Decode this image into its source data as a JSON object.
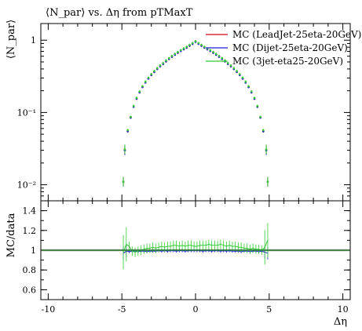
{
  "title": "⟨N_par⟩ vs. Δη from pTMaxT",
  "chart_data": [
    {
      "type": "line",
      "title": "⟨N_par⟩ vs. Δη from pTMaxT",
      "ylabel": "⟨N_par⟩",
      "xlabel": "",
      "xlim": [
        -10.5,
        10.5
      ],
      "ylim": [
        0.006,
        1.7
      ],
      "yscale": "log",
      "y_ticks": [
        0.01,
        0.1,
        1
      ],
      "y_tick_labels": [
        "10⁻²",
        "10⁻¹",
        "1"
      ],
      "legend": "top-right",
      "x": [
        -4.9,
        -4.8,
        -4.6,
        -4.4,
        -4.2,
        -4.0,
        -3.8,
        -3.6,
        -3.4,
        -3.2,
        -3.0,
        -2.8,
        -2.6,
        -2.4,
        -2.2,
        -2.0,
        -1.8,
        -1.6,
        -1.4,
        -1.2,
        -1.0,
        -0.8,
        -0.6,
        -0.4,
        -0.2,
        0.0,
        0.2,
        0.4,
        0.6,
        0.8,
        1.0,
        1.2,
        1.4,
        1.6,
        1.8,
        2.0,
        2.2,
        2.4,
        2.6,
        2.8,
        3.0,
        3.2,
        3.4,
        3.6,
        3.8,
        4.0,
        4.2,
        4.4,
        4.6,
        4.8,
        4.9
      ],
      "series": [
        {
          "name": "MC (LeadJet-25eta-20GeV)",
          "color": "#d0021b",
          "values": [
            0.011,
            0.03,
            0.055,
            0.085,
            0.12,
            0.155,
            0.19,
            0.225,
            0.26,
            0.295,
            0.33,
            0.365,
            0.4,
            0.435,
            0.47,
            0.51,
            0.55,
            0.59,
            0.63,
            0.67,
            0.71,
            0.75,
            0.79,
            0.84,
            0.89,
            0.95,
            0.89,
            0.84,
            0.79,
            0.75,
            0.71,
            0.67,
            0.63,
            0.59,
            0.55,
            0.51,
            0.47,
            0.435,
            0.4,
            0.365,
            0.33,
            0.295,
            0.26,
            0.225,
            0.19,
            0.155,
            0.12,
            0.085,
            0.055,
            0.03,
            0.011
          ]
        },
        {
          "name": "MC (Dijet-25eta-20GeV)",
          "color": "#1f1fd8",
          "values": [
            0.011,
            0.03,
            0.055,
            0.085,
            0.12,
            0.155,
            0.19,
            0.225,
            0.26,
            0.295,
            0.33,
            0.365,
            0.4,
            0.435,
            0.47,
            0.51,
            0.55,
            0.59,
            0.63,
            0.67,
            0.71,
            0.75,
            0.79,
            0.84,
            0.89,
            0.95,
            0.89,
            0.84,
            0.79,
            0.75,
            0.71,
            0.67,
            0.63,
            0.59,
            0.55,
            0.51,
            0.47,
            0.435,
            0.4,
            0.365,
            0.33,
            0.295,
            0.26,
            0.225,
            0.19,
            0.155,
            0.12,
            0.085,
            0.055,
            0.03,
            0.011
          ]
        },
        {
          "name": "MC (3jet-eta25-20GeV)",
          "color": "#33cc33",
          "values": [
            0.011,
            0.031,
            0.057,
            0.087,
            0.123,
            0.159,
            0.195,
            0.231,
            0.267,
            0.303,
            0.339,
            0.375,
            0.411,
            0.447,
            0.483,
            0.524,
            0.565,
            0.606,
            0.647,
            0.688,
            0.729,
            0.77,
            0.811,
            0.862,
            0.912,
            0.97,
            0.912,
            0.862,
            0.811,
            0.77,
            0.729,
            0.688,
            0.647,
            0.606,
            0.565,
            0.524,
            0.483,
            0.447,
            0.411,
            0.375,
            0.339,
            0.303,
            0.267,
            0.231,
            0.195,
            0.159,
            0.123,
            0.087,
            0.057,
            0.031,
            0.011
          ]
        }
      ]
    },
    {
      "type": "line",
      "ylabel": "MC/data",
      "xlabel": "Δη",
      "xlim": [
        -10.5,
        10.5
      ],
      "ylim": [
        0.5,
        1.5
      ],
      "x_ticks": [
        -10,
        -5,
        0,
        5,
        10
      ],
      "y_ticks": [
        0.6,
        0.8,
        1,
        1.2,
        1.4
      ],
      "reference": 1,
      "x": [
        -4.9,
        -4.7,
        -4.5,
        -4.3,
        -4.1,
        -3.9,
        -3.7,
        -3.5,
        -3.3,
        -3.1,
        -2.9,
        -2.7,
        -2.5,
        -2.3,
        -2.1,
        -1.9,
        -1.7,
        -1.5,
        -1.3,
        -1.1,
        -0.9,
        -0.7,
        -0.5,
        -0.3,
        -0.1,
        0.1,
        0.3,
        0.5,
        0.7,
        0.9,
        1.1,
        1.3,
        1.5,
        1.7,
        1.9,
        2.1,
        2.3,
        2.5,
        2.7,
        2.9,
        3.1,
        3.3,
        3.5,
        3.7,
        3.9,
        4.1,
        4.3,
        4.5,
        4.7,
        4.9
      ],
      "series": [
        {
          "name": "MC (LeadJet-25eta-20GeV)",
          "color": "#d0021b",
          "values": [
            1.0,
            1.0,
            1.0,
            1.0,
            1.0,
            1.0,
            1.0,
            1.0,
            1.0,
            1.0,
            1.0,
            1.0,
            1.0,
            1.0,
            1.0,
            1.0,
            1.0,
            1.0,
            1.0,
            1.0,
            1.0,
            1.0,
            1.0,
            1.0,
            1.0,
            1.0,
            1.0,
            1.0,
            1.0,
            1.0,
            1.0,
            1.0,
            1.0,
            1.0,
            1.0,
            1.0,
            1.0,
            1.0,
            1.0,
            1.0,
            1.0,
            1.0,
            1.0,
            1.0,
            1.0,
            1.0,
            1.0,
            1.0,
            1.0,
            1.0
          ]
        },
        {
          "name": "MC (Dijet-25eta-20GeV)",
          "color": "#1f1fd8",
          "values": [
            0.97,
            0.99,
            0.985,
            0.99,
            0.99,
            0.985,
            0.99,
            0.99,
            0.985,
            0.99,
            0.99,
            0.99,
            0.995,
            0.99,
            0.995,
            0.99,
            0.995,
            0.995,
            0.99,
            0.995,
            0.995,
            0.99,
            0.995,
            0.995,
            0.995,
            0.995,
            0.995,
            0.99,
            0.995,
            0.995,
            0.99,
            0.995,
            0.995,
            0.99,
            0.995,
            0.99,
            0.995,
            0.99,
            0.99,
            0.99,
            0.985,
            0.99,
            0.99,
            0.985,
            0.99,
            0.99,
            0.985,
            0.99,
            0.98,
            0.97
          ]
        },
        {
          "name": "MC (3jet-eta25-20GeV)",
          "color": "#33cc33",
          "values": [
            0.98,
            1.06,
            1.04,
            0.99,
            0.98,
            0.99,
            1.0,
            1.01,
            1.02,
            1.02,
            1.03,
            1.02,
            1.03,
            1.04,
            1.03,
            1.04,
            1.04,
            1.05,
            1.05,
            1.04,
            1.05,
            1.04,
            1.05,
            1.05,
            1.04,
            1.04,
            1.05,
            1.05,
            1.05,
            1.06,
            1.05,
            1.05,
            1.05,
            1.06,
            1.05,
            1.04,
            1.05,
            1.04,
            1.04,
            1.03,
            1.03,
            1.02,
            1.02,
            1.01,
            1.02,
            1.01,
            1.01,
            1.0,
            1.03,
            1.1
          ]
        }
      ]
    }
  ]
}
